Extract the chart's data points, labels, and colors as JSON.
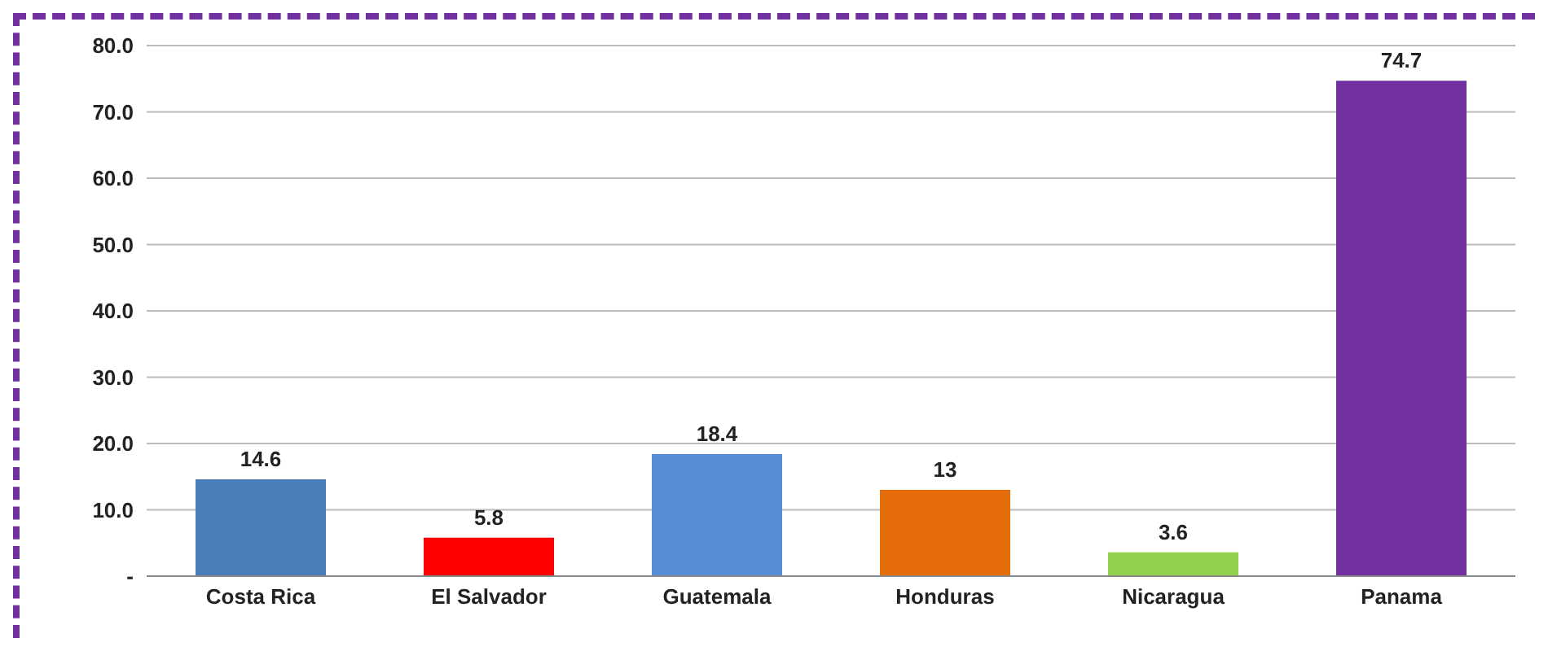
{
  "chart_data": {
    "type": "bar",
    "categories": [
      "Costa Rica",
      "El Salvador",
      "Guatemala",
      "Honduras",
      "Nicaragua",
      "Panama"
    ],
    "values": [
      14.6,
      5.8,
      18.4,
      13,
      3.6,
      74.7
    ],
    "colors": [
      "#4a7ebb",
      "#ff0000",
      "#558ed5",
      "#e46c0a",
      "#92d050",
      "#7030a0"
    ],
    "ylim": [
      0,
      80
    ],
    "yticks": [
      {
        "value": 0,
        "label": "-"
      },
      {
        "value": 10,
        "label": "10.0"
      },
      {
        "value": 20,
        "label": "20.0"
      },
      {
        "value": 30,
        "label": "30.0"
      },
      {
        "value": 40,
        "label": "40.0"
      },
      {
        "value": 50,
        "label": "50.0"
      },
      {
        "value": 60,
        "label": "60.0"
      },
      {
        "value": 70,
        "label": "70.0"
      },
      {
        "value": 80,
        "label": "80.0"
      }
    ],
    "grid": "y",
    "data_labels": true,
    "legend": false
  }
}
